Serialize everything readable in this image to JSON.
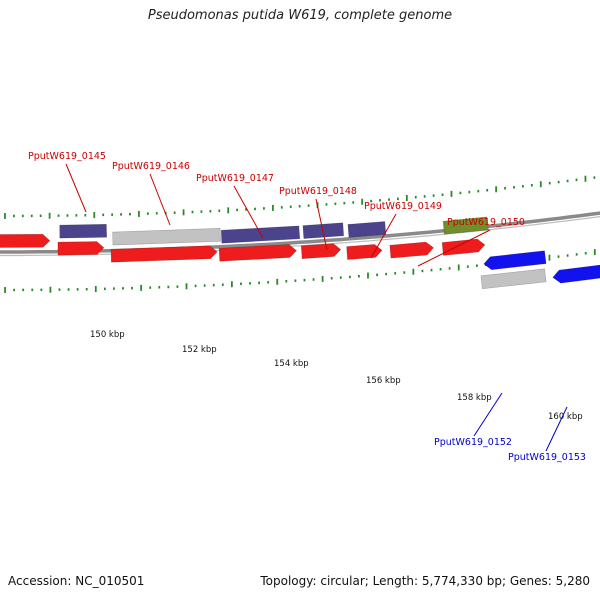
{
  "title": "Pseudomonas putida W619, complete genome",
  "accession_label": "Accession: NC_010501",
  "summary_label": "Topology: circular; Length: 5,774,330 bp; Genes: 5,280",
  "colors": {
    "backbone": "#8a8a8a",
    "cds": "#ee1c1c",
    "conserved_hypothetical": "#4b438c",
    "hypothetical": "#c2c2c2",
    "misc": "#6f8f2a",
    "reverse_cds": "#1212ee",
    "tick": "#2a8a2a",
    "label_forward": "#cc0000",
    "label_reverse": "#0000cc"
  },
  "kbp_labels": [
    "150 kbp",
    "152 kbp",
    "154 kbp",
    "156 kbp",
    "158 kbp",
    "160 kbp"
  ],
  "gene_labels": [
    {
      "text": "PputW619_0145",
      "strand": "forward"
    },
    {
      "text": "PputW619_0146",
      "strand": "forward"
    },
    {
      "text": "PputW619_0147",
      "strand": "forward"
    },
    {
      "text": "PputW619_0148",
      "strand": "forward"
    },
    {
      "text": "PputW619_0149",
      "strand": "forward"
    },
    {
      "text": "PputW619_0150",
      "strand": "forward"
    },
    {
      "text": "PputW619_0152",
      "strand": "reverse"
    },
    {
      "text": "PputW619_0153",
      "strand": "reverse"
    }
  ]
}
